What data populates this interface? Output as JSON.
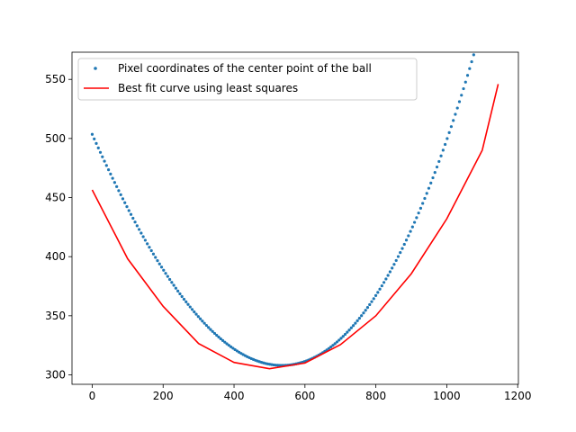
{
  "chart_data": {
    "type": "scatter",
    "title": "",
    "xlabel": "",
    "ylabel": "",
    "xlim": [
      -57,
      1202
    ],
    "ylim": [
      292,
      573
    ],
    "xticks": [
      0,
      200,
      400,
      600,
      800,
      1000,
      1200
    ],
    "yticks": [
      300,
      350,
      400,
      450,
      500,
      550
    ],
    "grid": false,
    "legend_position": "top-left",
    "series": [
      {
        "name": "Pixel coordinates of the center point of the ball",
        "kind": "scatter",
        "color": "#1f77b4",
        "model": {
          "form": "y = a*(x-h)^2 + k + c*(x-h)^3 + e",
          "a": 0.00079,
          "h": 535,
          "k": 308,
          "c": 2e-07,
          "x_start": 0,
          "x_end": 1145,
          "count": 200
        }
      },
      {
        "name": "Best fit curve using least squares",
        "kind": "line",
        "color": "#ff0000",
        "x": [
          0,
          100,
          200,
          300,
          400,
          500,
          600,
          700,
          800,
          900,
          1000,
          1100,
          1145
        ],
        "y": [
          456.5,
          398.2,
          358.0,
          326.5,
          310.5,
          305.2,
          310.0,
          325.5,
          350.0,
          385.6,
          432.0,
          490.0,
          546.0
        ]
      }
    ]
  }
}
